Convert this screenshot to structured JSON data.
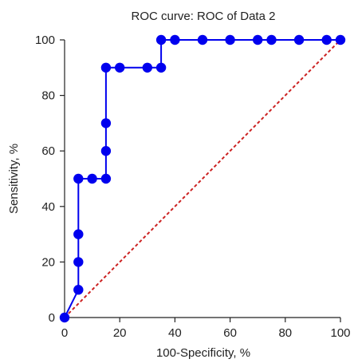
{
  "chart_data": {
    "type": "line",
    "title": "ROC curve: ROC of Data 2",
    "xlabel": "100-Specificity, %",
    "ylabel": "Sensitivity, %",
    "xlim": [
      0,
      100
    ],
    "ylim": [
      0,
      100
    ],
    "xticks": [
      0,
      20,
      40,
      60,
      80,
      100
    ],
    "yticks": [
      0,
      20,
      40,
      60,
      80,
      100
    ],
    "grid": false,
    "series": [
      {
        "color": "#0000ee",
        "markers": true,
        "step": true,
        "points": [
          [
            0,
            0
          ],
          [
            5,
            10
          ],
          [
            5,
            20
          ],
          [
            5,
            30
          ],
          [
            5,
            50
          ],
          [
            10,
            50
          ],
          [
            15,
            50
          ],
          [
            15,
            60
          ],
          [
            15,
            70
          ],
          [
            15,
            90
          ],
          [
            20,
            90
          ],
          [
            30,
            90
          ],
          [
            35,
            90
          ],
          [
            35,
            100
          ],
          [
            40,
            100
          ],
          [
            50,
            100
          ],
          [
            60,
            100
          ],
          [
            70,
            100
          ],
          [
            75,
            100
          ],
          [
            85,
            100
          ],
          [
            95,
            100
          ],
          [
            100,
            100
          ]
        ]
      },
      {
        "color": "#cc2222",
        "dashed": true,
        "markers": false,
        "step": false,
        "points": [
          [
            0,
            0
          ],
          [
            100,
            100
          ]
        ]
      }
    ]
  }
}
